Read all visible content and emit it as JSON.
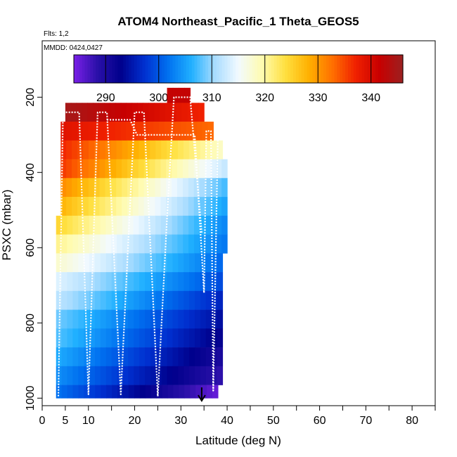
{
  "chart_data": {
    "type": "heatmap",
    "title": "ATOM4 Northeast_Pacific_1 Theta_GEOS5",
    "annotations": [
      "Flts: 1,2",
      "MMDD: 0424,0427"
    ],
    "xlabel": "Latitude (deg N)",
    "ylabel": "PSXC (mbar)",
    "xlim": [
      0,
      85
    ],
    "ylim": [
      1020,
      50
    ],
    "y_reversed": true,
    "x_ticks": [
      0,
      5,
      10,
      20,
      30,
      40,
      50,
      60,
      70,
      80
    ],
    "y_ticks": [
      200,
      400,
      600,
      800,
      1000
    ],
    "colorbar": {
      "min": 284,
      "max": 346,
      "ticks": [
        290,
        300,
        310,
        320,
        330,
        340
      ],
      "colors": [
        "#7a1fe8",
        "#2a10a8",
        "#00008c",
        "#0030d0",
        "#0070f0",
        "#20b0ff",
        "#a8dcff",
        "#f2faff",
        "#fffbb0",
        "#ffe040",
        "#ffb000",
        "#ff7000",
        "#f02000",
        "#c80000",
        "#9b2020"
      ]
    },
    "layers": [
      {
        "p_top": 175,
        "p_bot": 215,
        "lat_min": 27,
        "lat_max": 32,
        "theta_range": [
          342,
          342
        ]
      },
      {
        "p_top": 215,
        "p_bot": 265,
        "lat_min": 5,
        "lat_max": 35,
        "theta_range": [
          345,
          337
        ]
      },
      {
        "p_top": 265,
        "p_bot": 315,
        "lat_min": 4,
        "lat_max": 37,
        "theta_range": [
          339,
          333
        ]
      },
      {
        "p_top": 315,
        "p_bot": 365,
        "lat_min": 4,
        "lat_max": 39,
        "theta_range": [
          337,
          318
        ]
      },
      {
        "p_top": 365,
        "p_bot": 415,
        "lat_min": 4,
        "lat_max": 40,
        "theta_range": [
          336,
          312
        ]
      },
      {
        "p_top": 415,
        "p_bot": 465,
        "lat_min": 4,
        "lat_max": 40,
        "theta_range": [
          331,
          307
        ]
      },
      {
        "p_top": 465,
        "p_bot": 515,
        "lat_min": 4,
        "lat_max": 40,
        "theta_range": [
          328,
          305
        ]
      },
      {
        "p_top": 515,
        "p_bot": 565,
        "lat_min": 3,
        "lat_max": 40,
        "theta_range": [
          325,
          303
        ]
      },
      {
        "p_top": 565,
        "p_bot": 615,
        "lat_min": 3,
        "lat_max": 40,
        "theta_range": [
          321,
          302
        ]
      },
      {
        "p_top": 615,
        "p_bot": 665,
        "lat_min": 3,
        "lat_max": 39,
        "theta_range": [
          318,
          301
        ]
      },
      {
        "p_top": 665,
        "p_bot": 715,
        "lat_min": 3,
        "lat_max": 39,
        "theta_range": [
          314,
          299
        ]
      },
      {
        "p_top": 715,
        "p_bot": 765,
        "lat_min": 3,
        "lat_max": 39,
        "theta_range": [
          312,
          296
        ]
      },
      {
        "p_top": 765,
        "p_bot": 815,
        "lat_min": 3,
        "lat_max": 39,
        "theta_range": [
          309,
          294
        ]
      },
      {
        "p_top": 815,
        "p_bot": 865,
        "lat_min": 3,
        "lat_max": 39,
        "theta_range": [
          308,
          292
        ]
      },
      {
        "p_top": 865,
        "p_bot": 915,
        "lat_min": 3,
        "lat_max": 39,
        "theta_range": [
          306,
          290
        ]
      },
      {
        "p_top": 915,
        "p_bot": 965,
        "lat_min": 3,
        "lat_max": 39,
        "theta_range": [
          304,
          288
        ]
      },
      {
        "p_top": 965,
        "p_bot": 1000,
        "lat_min": 3,
        "lat_max": 38,
        "theta_range": [
          302,
          285
        ]
      }
    ],
    "flight_tracks": [
      {
        "points": [
          [
            3.5,
            995
          ],
          [
            4.5,
            240
          ],
          [
            8,
            240
          ],
          [
            10,
            990
          ],
          [
            12,
            240
          ],
          [
            14,
            240
          ],
          [
            17,
            990
          ],
          [
            20,
            240
          ],
          [
            22,
            240
          ],
          [
            25,
            995
          ],
          [
            27,
            520
          ],
          [
            28.5,
            200
          ],
          [
            32,
            200
          ],
          [
            34.5,
            560
          ]
        ]
      },
      {
        "points": [
          [
            14,
            260
          ],
          [
            19,
            260
          ],
          [
            20.5,
            300
          ],
          [
            33,
            300
          ],
          [
            35,
            720
          ],
          [
            35.5,
            290
          ],
          [
            36.5,
            290
          ],
          [
            37,
            980
          ],
          [
            38,
            300
          ]
        ]
      }
    ],
    "markers": [
      {
        "type": "arrow-down",
        "lat": 34.5,
        "p": 1005
      }
    ]
  }
}
